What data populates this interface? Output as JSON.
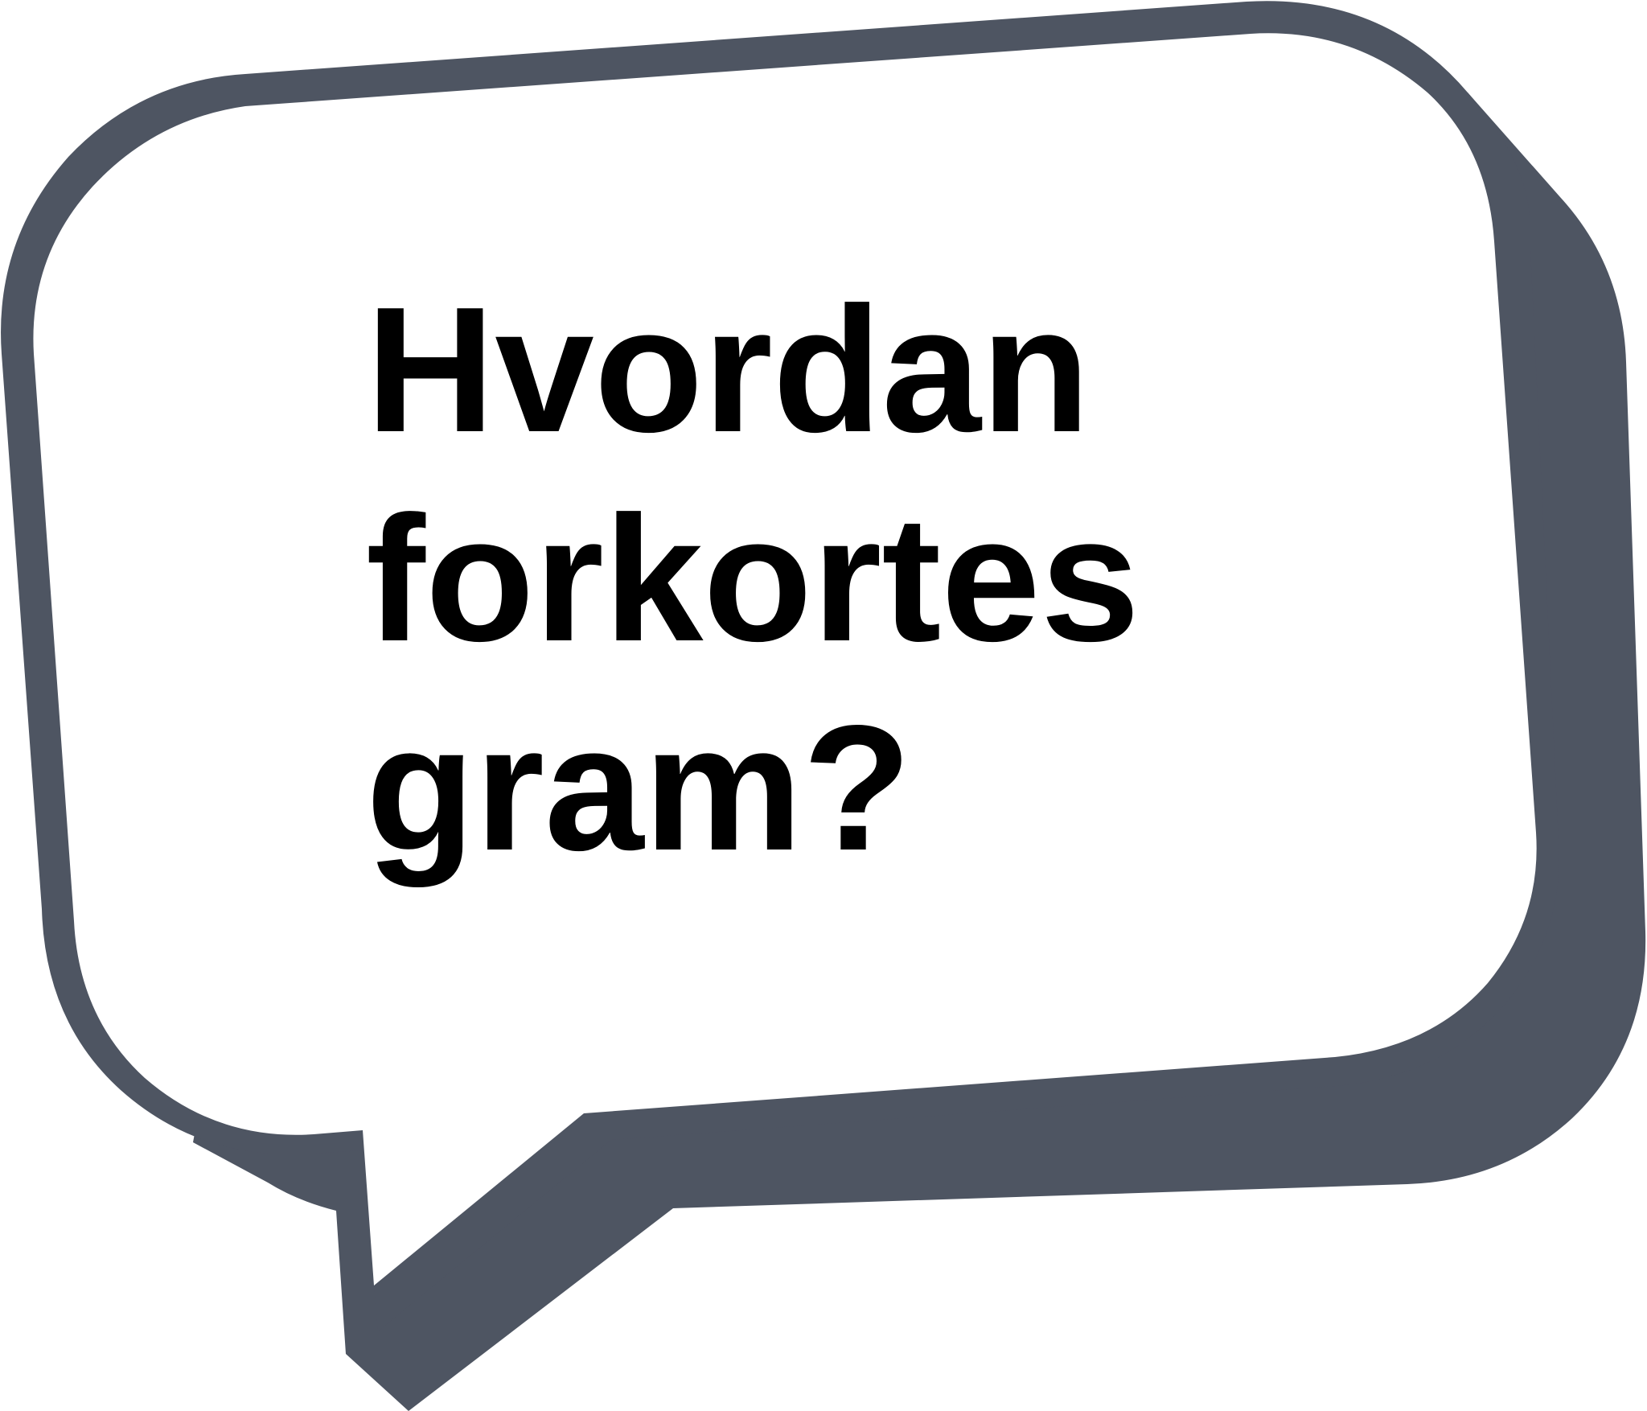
{
  "colors": {
    "bubble_outline": "#4e5562",
    "bubble_fill": "#ffffff",
    "text": "#000000"
  },
  "speech_bubble": {
    "lines": [
      "Hvordan",
      "forkortes",
      "gram?"
    ]
  }
}
